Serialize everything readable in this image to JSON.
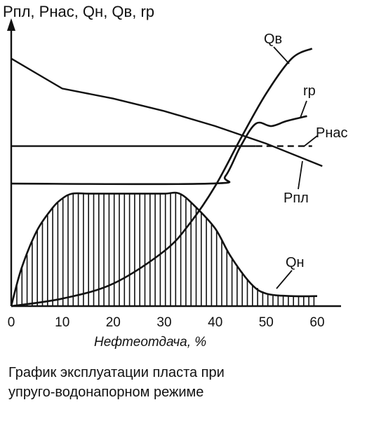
{
  "chart_data": {
    "type": "line",
    "title": "",
    "ylabel": "Pпл, Pнас, Qн, Qв, rр",
    "xlabel": "Нефтеотдача, %",
    "xlim": [
      0,
      60
    ],
    "ylim": [
      0,
      100
    ],
    "x_ticks": [
      "0",
      "10",
      "20",
      "30",
      "40",
      "50",
      "60"
    ],
    "grid": false,
    "series": [
      {
        "name": "Qв",
        "x": [
          0,
          10,
          20,
          30,
          35,
          40,
          45,
          50,
          55,
          59
        ],
        "y": [
          0,
          3,
          9,
          22,
          33,
          48,
          67,
          85,
          99,
          103
        ]
      },
      {
        "name": "rр",
        "x": [
          0,
          39,
          42,
          45,
          48,
          51,
          54,
          58
        ],
        "y": [
          49,
          49,
          52,
          64,
          73,
          72,
          74,
          76
        ]
      },
      {
        "name": "Pнас",
        "x": [
          0,
          48,
          59
        ],
        "y": [
          64,
          64,
          64
        ]
      },
      {
        "name": "Pпл",
        "x": [
          0,
          5,
          10,
          20,
          30,
          40,
          50,
          61
        ],
        "y": [
          99,
          93,
          87,
          83,
          78,
          72,
          65,
          56
        ]
      },
      {
        "name": "Qн",
        "x": [
          0,
          2,
          5,
          8,
          10,
          12,
          15,
          20,
          25,
          30,
          33,
          36,
          40,
          43,
          47,
          50,
          55,
          60
        ],
        "y": [
          0,
          15,
          30,
          39,
          43,
          45,
          45,
          45,
          45,
          45,
          45,
          40,
          31,
          20,
          9,
          5,
          4,
          4
        ]
      }
    ],
    "annotations": [
      "Qв",
      "rр",
      "Pнас",
      "Pпл",
      "Qн"
    ]
  },
  "caption": {
    "line1": "График эксплуатации пласта при",
    "line2": "упруго-водонапорном режиме"
  }
}
